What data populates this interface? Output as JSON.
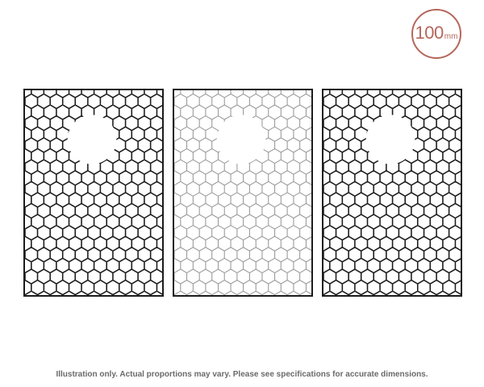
{
  "size_badge": {
    "value": "100",
    "unit": "mm",
    "color": "#b5675b"
  },
  "panels": [
    {
      "name": "dark",
      "stroke": "#1c1c1c",
      "stroke_weight": "heavy",
      "cutout": "circle-upper"
    },
    {
      "name": "light",
      "stroke": "#9a9a9a",
      "stroke_weight": "light",
      "cutout": "circle-upper"
    },
    {
      "name": "dark",
      "stroke": "#1c1c1c",
      "stroke_weight": "heavy",
      "cutout": "circle-upper"
    }
  ],
  "pattern": "hexagon-mesh",
  "caption": "Illustration only. Actual proportions may vary. Please see specifications for accurate dimensions."
}
